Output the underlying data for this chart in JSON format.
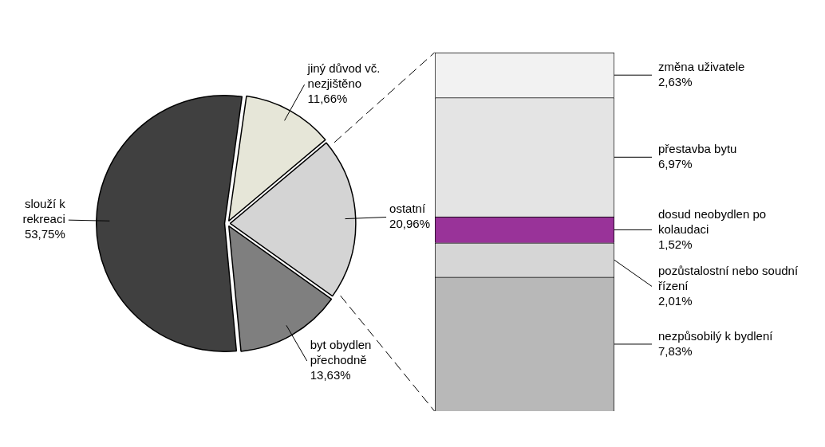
{
  "chart_data": [
    {
      "type": "pie",
      "categories": [
        "jiný důvod vč. nezjištěno",
        "ostatní",
        "byt obydlen přechodně",
        "slouží k rekreaci"
      ],
      "values": [
        11.66,
        20.96,
        13.63,
        53.75
      ],
      "colors": [
        "#e6e6d8",
        "#d4d4d4",
        "#7f7f7f",
        "#404040"
      ],
      "value_labels": [
        "11,66%",
        "20,96%",
        "13,63%",
        "53,75%"
      ]
    },
    {
      "type": "bar",
      "stacked": true,
      "tick_labels": false,
      "categories": [
        null
      ],
      "series": [
        {
          "name": "nezpůsobilý k bydlení",
          "color": "#b8b8b8",
          "values": [
            7.83
          ],
          "value_labels": [
            "7,83%"
          ]
        },
        {
          "name": "pozůstalostní nebo soudní řízení",
          "color": "#d6d6d6",
          "values": [
            2.01
          ],
          "value_labels": [
            "2,01%"
          ]
        },
        {
          "name": "dosud neobydlen po kolaudaci",
          "color": "#993399",
          "values": [
            1.52
          ],
          "value_labels": [
            "1,52%"
          ]
        },
        {
          "name": "přestavba bytu",
          "color": "#e4e4e4",
          "values": [
            6.97
          ],
          "value_labels": [
            "6,97%"
          ]
        },
        {
          "name": "změna uživatele",
          "color": "#f2f2f2",
          "values": [
            2.63
          ],
          "value_labels": [
            "2,63%"
          ]
        }
      ]
    }
  ]
}
